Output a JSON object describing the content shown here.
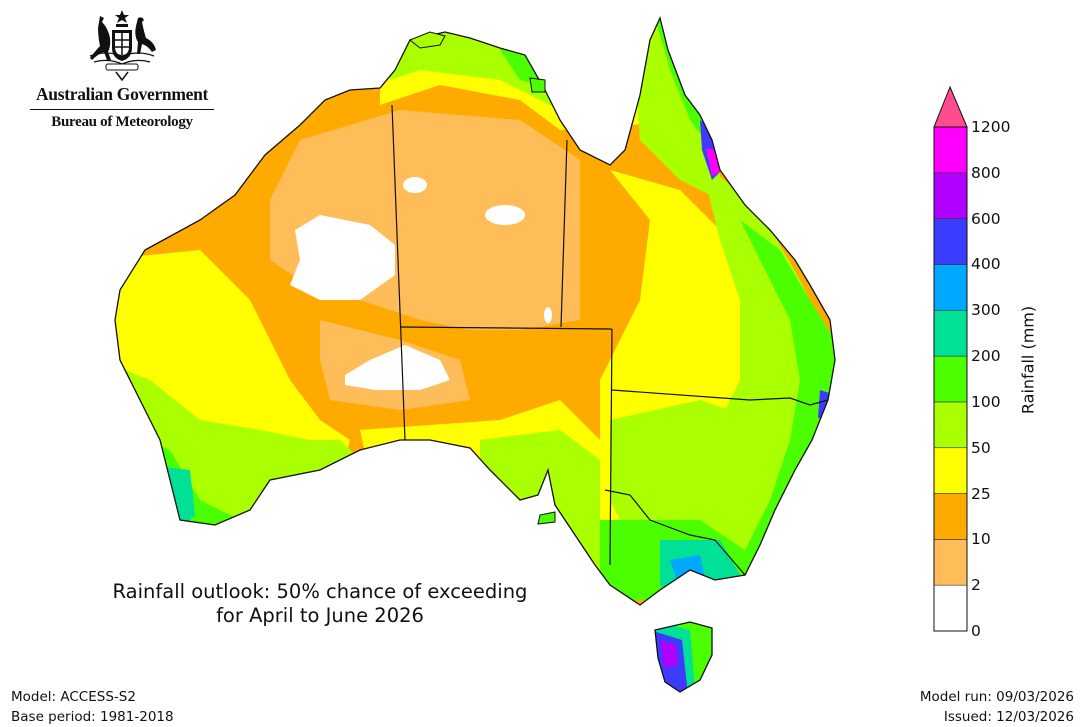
{
  "logo": {
    "emblem": "commonwealth-coat-of-arms",
    "government": "Australian Government",
    "agency": "Bureau of Meteorology"
  },
  "title": {
    "line1": "Rainfall outlook: 50% chance of exceeding",
    "line2": "for April to June 2026"
  },
  "footer": {
    "model": "Model: ACCESS-S2",
    "base_period": "Base period: 1981-2018",
    "model_run": "Model run: 09/03/2026",
    "issued": "Issued: 12/03/2026"
  },
  "colorbar": {
    "label": "Rainfall (mm)",
    "extend_arrow_color": "#ff4b8f",
    "bins": [
      {
        "from": "0",
        "to": "2",
        "color": "#ffffff"
      },
      {
        "from": "2",
        "to": "10",
        "color": "#ffbd5a"
      },
      {
        "from": "10",
        "to": "25",
        "color": "#ffaa00"
      },
      {
        "from": "25",
        "to": "50",
        "color": "#ffff00"
      },
      {
        "from": "50",
        "to": "100",
        "color": "#aaff00"
      },
      {
        "from": "100",
        "to": "200",
        "color": "#4cff00"
      },
      {
        "from": "200",
        "to": "300",
        "color": "#00e096"
      },
      {
        "from": "300",
        "to": "400",
        "color": "#00a8ff"
      },
      {
        "from": "400",
        "to": "600",
        "color": "#3c3cff"
      },
      {
        "from": "600",
        "to": "800",
        "color": "#b000ff"
      },
      {
        "from": "800",
        "to": "1200",
        "color": "#ff00ff"
      }
    ],
    "ticks": [
      "0",
      "2",
      "10",
      "25",
      "50",
      "100",
      "200",
      "300",
      "400",
      "600",
      "800",
      "1200"
    ]
  },
  "map": {
    "region": "Australia",
    "variable": "Rainfall (mm), 50% chance of exceeding",
    "period": "April to June 2026"
  }
}
